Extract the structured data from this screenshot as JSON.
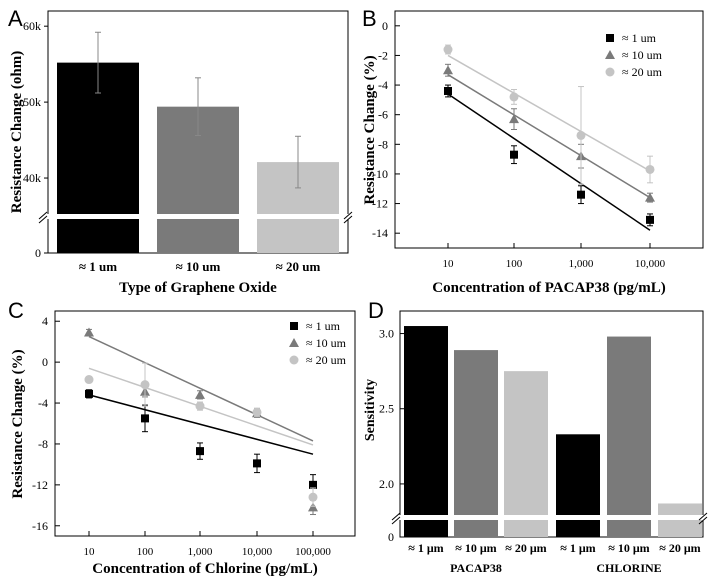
{
  "chart_data": [
    {
      "panel": "A",
      "type": "bar",
      "categories": [
        "≈ 1 um",
        "≈ 10 um",
        "≈ 20 um"
      ],
      "values": [
        55200,
        49400,
        42100
      ],
      "errors": [
        4000,
        3800,
        3400
      ],
      "colors": [
        "#000000",
        "#7a7a7a",
        "#c4c4c4"
      ],
      "xlabel": "Type of Graphene Oxide",
      "ylabel": "Resistance Change (ohm)",
      "yticks": [
        "0",
        "40k",
        "50k",
        "60k"
      ],
      "ytick_values": [
        0,
        40000,
        50000,
        60000
      ],
      "ylim": [
        0,
        62000
      ],
      "axis_break": true
    },
    {
      "panel": "B",
      "type": "scatter",
      "x": [
        10,
        100,
        1000,
        10000
      ],
      "xticks": [
        "10",
        "100",
        "1,000",
        "10,000"
      ],
      "x_scale": "log",
      "xlabel": "Concentration of PACAP38 (pg/mL)",
      "ylabel": "Resistance Change (%)",
      "yticks": [
        "0",
        "-2",
        "-4",
        "-6",
        "-8",
        "-10",
        "-12",
        "-14"
      ],
      "ylim": [
        -15,
        1
      ],
      "legend_position": "top-right",
      "series": [
        {
          "name": "≈ 1 um",
          "marker": "square",
          "color": "#000000",
          "values": [
            -4.4,
            -8.7,
            -11.4,
            -13.1
          ],
          "errors": [
            0.4,
            0.6,
            0.6,
            0.4
          ],
          "fit": [
            -4.6,
            -7.6,
            -10.7,
            -13.8
          ]
        },
        {
          "name": "≈ 10 um",
          "marker": "triangle",
          "color": "#7a7a7a",
          "values": [
            -3.0,
            -6.3,
            -8.8,
            -11.6
          ],
          "errors": [
            0.4,
            0.7,
            0.8,
            0.3
          ],
          "fit": [
            -3.3,
            -6.0,
            -8.8,
            -11.6
          ]
        },
        {
          "name": "≈ 20 um",
          "marker": "circle",
          "color": "#c4c4c4",
          "values": [
            -1.6,
            -4.8,
            -7.4,
            -9.7
          ],
          "errors": [
            0.3,
            0.5,
            3.3,
            0.9
          ],
          "fit": [
            -2.0,
            -4.6,
            -7.2,
            -9.8
          ]
        }
      ]
    },
    {
      "panel": "C",
      "type": "scatter",
      "x": [
        10,
        100,
        1000,
        10000,
        100000
      ],
      "xticks": [
        "10",
        "100",
        "1,000",
        "10,000",
        "100,000"
      ],
      "x_scale": "log",
      "xlabel": "Concentration of Chlorine (pg/mL)",
      "ylabel": "Resistance Change (%)",
      "yticks": [
        "4",
        "0",
        "-4",
        "-8",
        "-12",
        "-16"
      ],
      "ylim": [
        -17,
        5
      ],
      "legend_position": "top-right",
      "series": [
        {
          "name": "≈ 1 um",
          "marker": "square",
          "color": "#000000",
          "values": [
            -3.1,
            -5.5,
            -8.7,
            -9.9,
            -12.0
          ],
          "errors": [
            0.4,
            1.3,
            0.8,
            0.9,
            1.0
          ],
          "fit": [
            -3.2,
            -4.7,
            -6.1,
            -7.6,
            -9.0
          ]
        },
        {
          "name": "≈ 10 um",
          "marker": "triangle",
          "color": "#7a7a7a",
          "values": [
            2.9,
            -2.9,
            -3.2,
            -5.0,
            -14.2
          ],
          "errors": [
            0.3,
            0.5,
            0.4,
            0.4,
            0.7
          ],
          "fit": [
            2.5,
            -0.1,
            -2.6,
            -5.2,
            -7.7
          ]
        },
        {
          "name": "≈ 20 um",
          "marker": "circle",
          "color": "#c4c4c4",
          "values": [
            -1.7,
            -2.2,
            -4.3,
            -4.9,
            -13.2
          ],
          "errors": [
            0.3,
            2.1,
            0.4,
            0.4,
            0.9
          ],
          "fit": [
            -0.6,
            -2.4,
            -4.3,
            -6.2,
            -8.1
          ]
        }
      ]
    },
    {
      "panel": "D",
      "type": "bar",
      "categories": [
        "≈ 1 μm",
        "≈ 10 μm",
        "≈ 20 μm",
        "≈ 1 μm",
        "≈ 10 μm",
        "≈ 20 μm"
      ],
      "groups": [
        "PACAP38",
        "CHLORINE"
      ],
      "values": [
        3.05,
        2.89,
        2.75,
        2.33,
        2.98,
        1.87
      ],
      "colors": [
        "#000000",
        "#7a7a7a",
        "#c4c4c4",
        "#000000",
        "#7a7a7a",
        "#c4c4c4"
      ],
      "ylabel": "Sensitivity",
      "yticks": [
        "0",
        "2.0",
        "2.5",
        "3.0"
      ],
      "ytick_values": [
        0,
        2.0,
        2.5,
        3.0
      ],
      "ylim": [
        0,
        3.15
      ],
      "axis_break": true
    }
  ]
}
